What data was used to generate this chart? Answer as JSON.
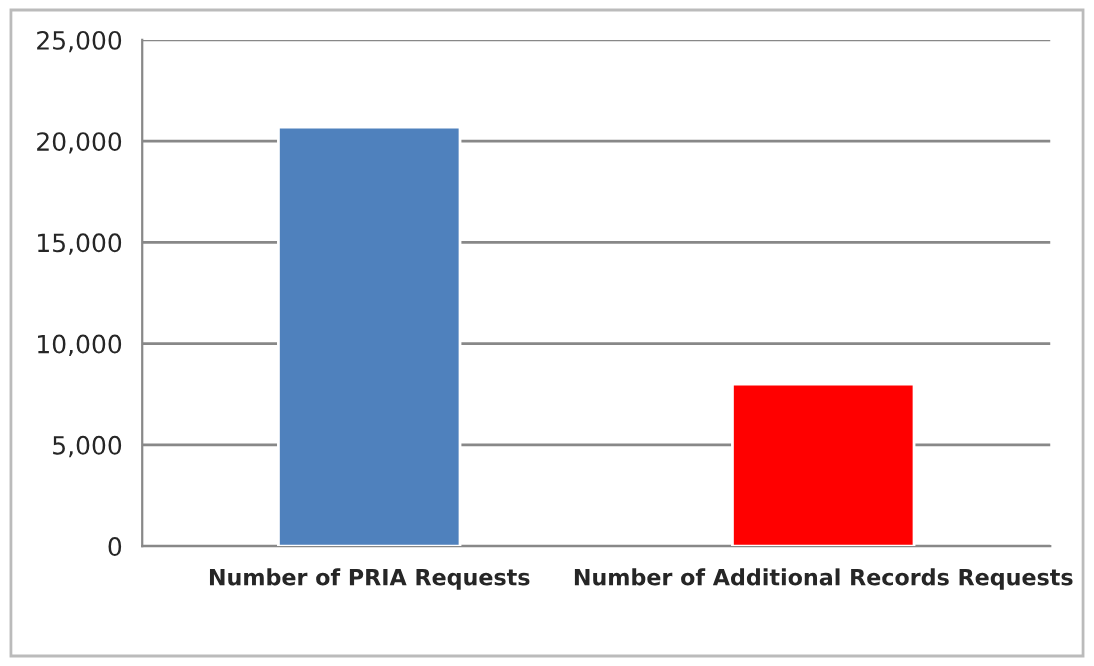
{
  "chart_data": {
    "type": "bar",
    "categories": [
      "Number of PRIA Requests",
      "Number of Additional Records Requests"
    ],
    "values": [
      20700,
      8000
    ],
    "colors": [
      "#4f81bd",
      "#ff0000"
    ],
    "ylim": [
      0,
      25000
    ],
    "yticks": [
      {
        "value": 0,
        "label": "0"
      },
      {
        "value": 5000,
        "label": "5,000"
      },
      {
        "value": 10000,
        "label": "10,000"
      },
      {
        "value": 15000,
        "label": "15,000"
      },
      {
        "value": 20000,
        "label": "20,000"
      },
      {
        "value": 25000,
        "label": "25,000"
      }
    ],
    "grid": "y"
  }
}
